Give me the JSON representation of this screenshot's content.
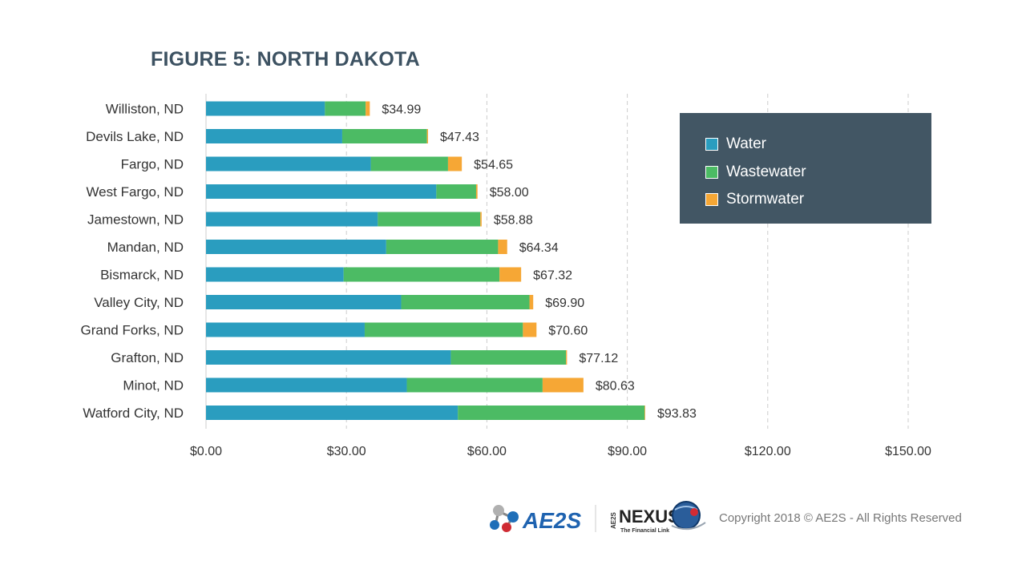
{
  "page": {
    "title": "FIGURE 5: NORTH DAKOTA",
    "copyright": "Copyright 2018 © AE2S - All Rights Reserved",
    "logos": {
      "ae2s": "AE2S",
      "nexus_top": "NEXUS",
      "nexus_sub": "The Financial Link",
      "nexus_side": "AE2S"
    }
  },
  "chart_data": {
    "type": "bar",
    "orientation": "horizontal",
    "stacked": true,
    "title": "FIGURE 5: NORTH DAKOTA",
    "categories": [
      "Williston, ND",
      "Devils Lake, ND",
      "Fargo, ND",
      "West Fargo, ND",
      "Jamestown, ND",
      "Mandan, ND",
      "Bismarck, ND",
      "Valley City, ND",
      "Grand Forks, ND",
      "Grafton, ND",
      "Minot, ND",
      "Watford City, ND"
    ],
    "series": [
      {
        "name": "Water",
        "color": "#2a9dbf",
        "values": [
          25.4,
          29.1,
          35.2,
          49.2,
          36.7,
          38.5,
          29.4,
          41.7,
          33.9,
          52.3,
          42.9,
          53.8
        ]
      },
      {
        "name": "Wastewater",
        "color": "#4cbb64",
        "values": [
          8.7,
          18.1,
          16.5,
          8.5,
          21.9,
          23.9,
          33.3,
          27.4,
          33.8,
          24.6,
          29.0,
          39.9
        ]
      },
      {
        "name": "Stormwater",
        "color": "#f6a735",
        "values": [
          0.89,
          0.23,
          2.95,
          0.3,
          0.28,
          1.94,
          4.62,
          0.8,
          2.9,
          0.22,
          8.73,
          0.13
        ]
      }
    ],
    "totals": [
      "$34.99",
      "$47.43",
      "$54.65",
      "$58.00",
      "$58.88",
      "$64.34",
      "$67.32",
      "$69.90",
      "$70.60",
      "$77.12",
      "$80.63",
      "$93.83"
    ],
    "xlim": [
      0,
      150
    ],
    "xticks": [
      0,
      30,
      60,
      90,
      120,
      150
    ],
    "xtick_labels": [
      "$0.00",
      "$30.00",
      "$60.00",
      "$90.00",
      "$120.00",
      "$150.00"
    ],
    "grid": "vertical dashed",
    "legend_position": "top-right"
  }
}
